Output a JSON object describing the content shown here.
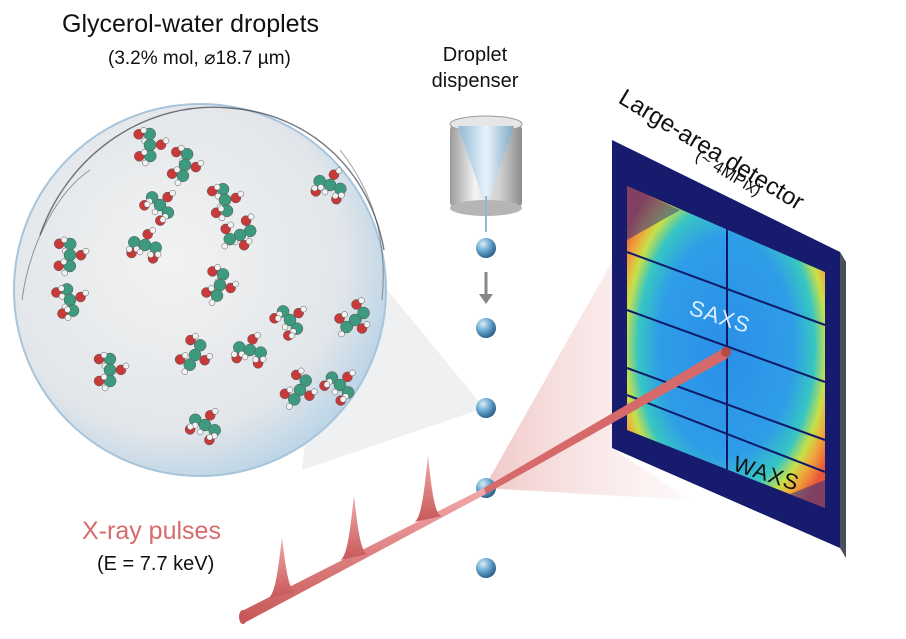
{
  "labels": {
    "title": "Glycerol-water droplets",
    "subtitle": "(3.2% mol, ⌀18.7 µm)",
    "dispenser_line1": "Droplet",
    "dispenser_line2": "dispenser",
    "detector_title": "Large-area detector",
    "detector_subtitle": "(~ 4MPix)",
    "saxs": "SAXS",
    "waxs": "WAXS",
    "xray_title": "X-ray pulses",
    "xray_energy": "(E = 7.7 keV)"
  },
  "colors": {
    "beam": "#e07a7a",
    "droplet": "#3f8fc0",
    "detector_frame": "#1a1f7a",
    "carbon": "#3e9a7e",
    "oxygen": "#c83a3a",
    "hydrogen": "#f2f2f2"
  }
}
